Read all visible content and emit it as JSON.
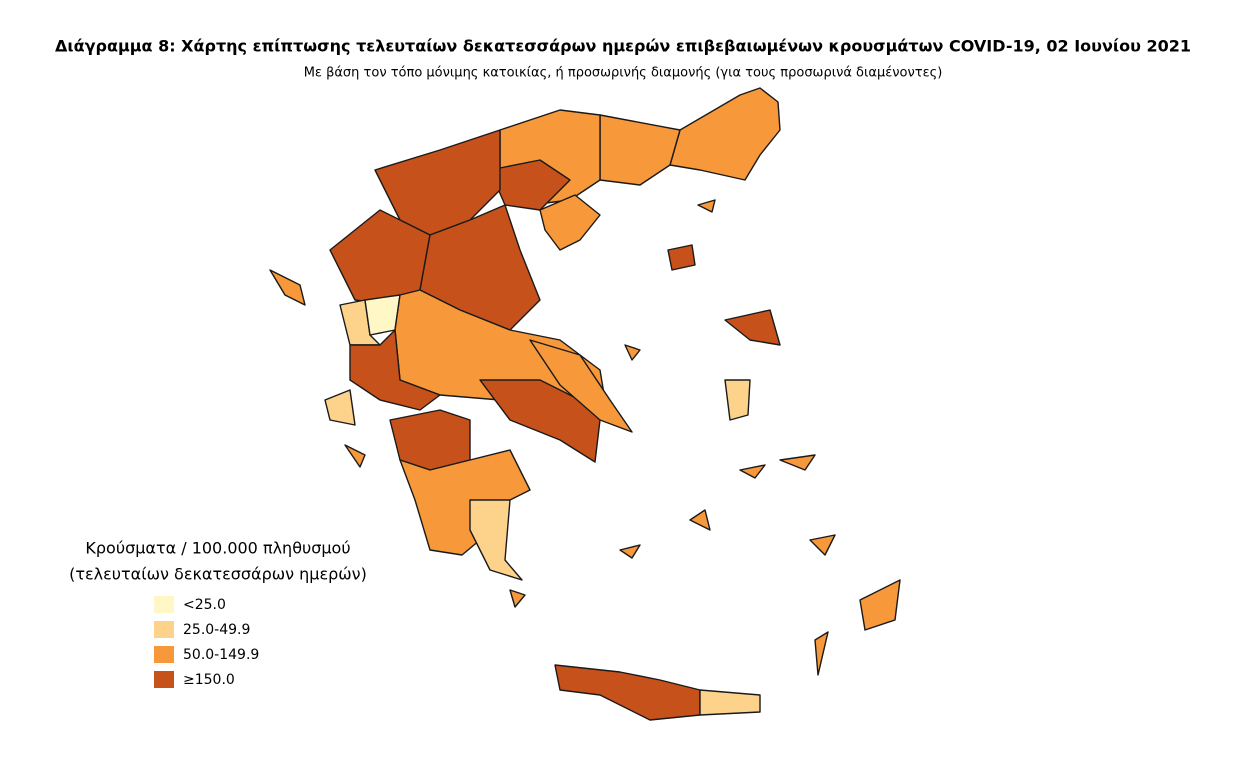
{
  "title": "Διάγραμμα 8: Χάρτης επίπτωσης τελευταίων δεκατεσσάρων ημερών επιβεβαιωμένων κρουσμάτων COVID-19, 02 Ιουνίου 2021",
  "subtitle": "Με βάση τον τόπο μόνιμης κατοικίας, ή προσωρινής διαμονής (για τους προσωρινά διαμένοντες)",
  "legend": {
    "title": [
      "Κρούσματα / 100.000 πληθυσμού",
      "(τελευταίων δεκατεσσάρων ημερών)"
    ],
    "items": [
      {
        "label": "<25.0",
        "color": "#fff8c6"
      },
      {
        "label": "25.0-49.9",
        "color": "#fdd38b"
      },
      {
        "label": "50.0-149.9",
        "color": "#f7983b"
      },
      {
        "label": "≥150.0",
        "color": "#c7511a"
      }
    ]
  }
}
